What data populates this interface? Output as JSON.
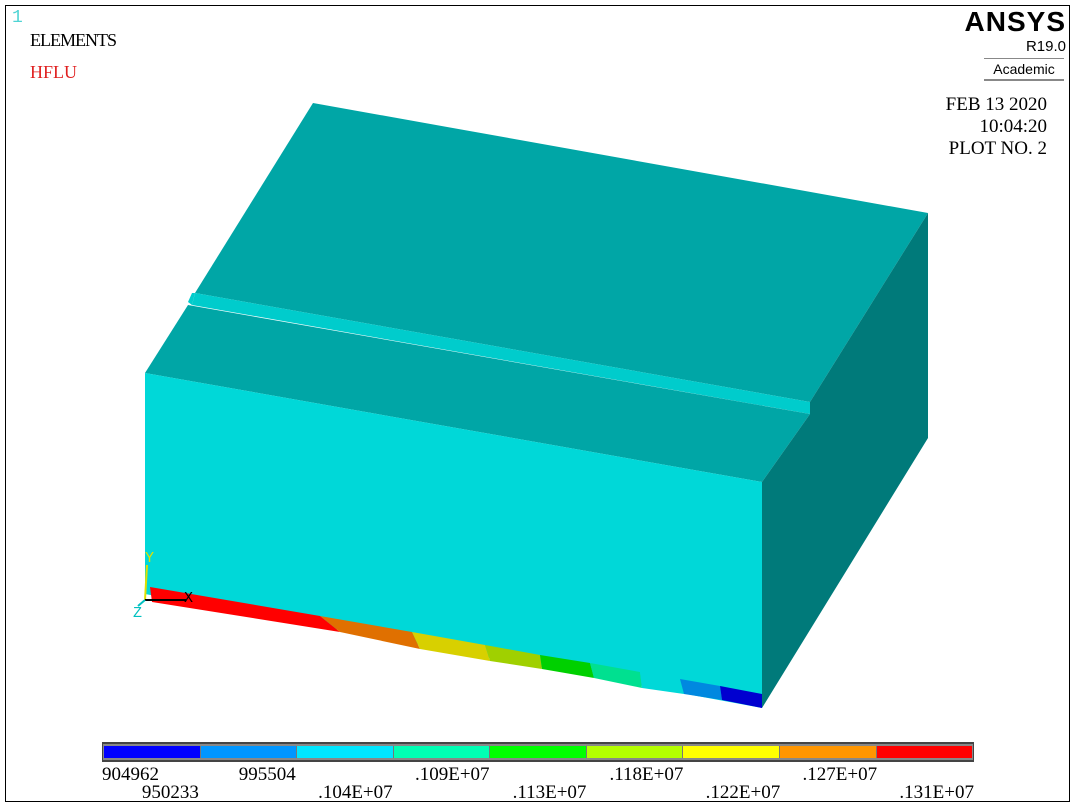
{
  "window_number": "1",
  "plot_labels": {
    "elements": "ELEMENTS",
    "result": "HFLU"
  },
  "logo": {
    "name": "ANSYS",
    "version": "R19.0",
    "edition": "Academic"
  },
  "info": {
    "date": "FEB 13 2020",
    "time": "10:04:20",
    "plot": "PLOT NO.   2"
  },
  "triad": {
    "x": "X",
    "y": "Y",
    "z": "Z"
  },
  "colors": {
    "face_front": "#00d8d8",
    "face_top": "#00a6a6",
    "face_side": "#007a7a",
    "groove": "#00cccc",
    "edge": "#006060"
  },
  "legend": {
    "colors": [
      "#0000ff",
      "#0096ff",
      "#00e6ff",
      "#00ffb4",
      "#00ff00",
      "#b4ff00",
      "#ffff00",
      "#ff9600",
      "#ff0000"
    ],
    "labels_top": [
      "904962",
      "995504",
      ".109E+07",
      ".118E+07",
      ".127E+07"
    ],
    "labels_bottom": [
      "950233",
      ".104E+07",
      ".113E+07",
      ".122E+07",
      ".131E+07"
    ]
  }
}
